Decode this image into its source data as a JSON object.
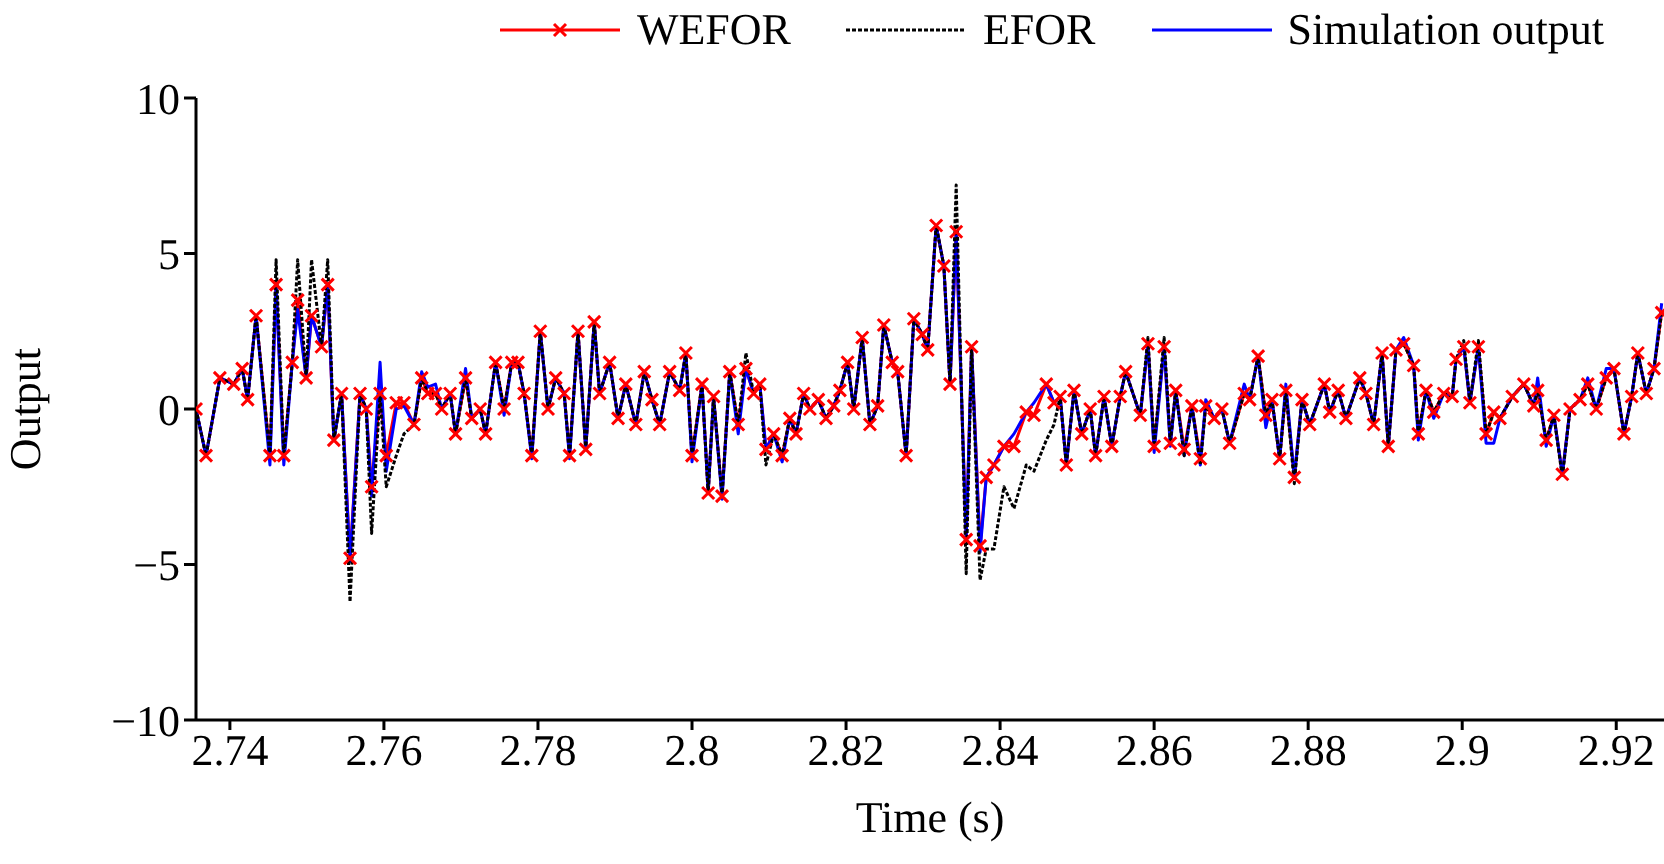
{
  "chart_data": {
    "type": "line",
    "xlabel": "Time (s)",
    "ylabel": "Output",
    "xlim": [
      2.7356,
      2.9262
    ],
    "ylim": [
      -10,
      10
    ],
    "xticks": [
      2.74,
      2.76,
      2.78,
      2.8,
      2.82,
      2.84,
      2.86,
      2.88,
      2.9,
      2.92
    ],
    "yticks": [
      {
        "value": -10,
        "label": "−10"
      },
      {
        "value": -5,
        "label": "−5"
      },
      0,
      5,
      10
    ],
    "grid": false,
    "legend": "top",
    "x": [
      2.7356,
      2.7369,
      2.7387,
      2.7405,
      2.7416,
      2.7423,
      2.7434,
      2.7452,
      2.746,
      2.747,
      2.7481,
      2.7488,
      2.7499,
      2.7506,
      2.7519,
      2.7527,
      2.7535,
      2.7545,
      2.7556,
      2.7569,
      2.7577,
      2.7584,
      2.7595,
      2.7603,
      2.7616,
      2.7626,
      2.7639,
      2.7649,
      2.7657,
      2.7667,
      2.7675,
      2.7686,
      2.7693,
      2.7706,
      2.7714,
      2.7725,
      2.7732,
      2.7745,
      2.7756,
      2.7766,
      2.7774,
      2.7782,
      2.7792,
      2.7803,
      2.7813,
      2.7823,
      2.7834,
      2.7841,
      2.7852,
      2.7862,
      2.7873,
      2.788,
      2.7893,
      2.7904,
      2.7914,
      2.7927,
      2.7938,
      2.7948,
      2.7958,
      2.7971,
      2.7984,
      2.7992,
      2.8,
      2.8013,
      2.8021,
      2.8028,
      2.8039,
      2.8049,
      2.806,
      2.807,
      2.808,
      2.8088,
      2.8096,
      2.8106,
      2.8117,
      2.8127,
      2.8135,
      2.8145,
      2.8153,
      2.8164,
      2.8174,
      2.8184,
      2.8192,
      2.8202,
      2.821,
      2.8221,
      2.8231,
      2.8241,
      2.8249,
      2.826,
      2.8267,
      2.8278,
      2.8288,
      2.8299,
      2.8306,
      2.8317,
      2.8327,
      2.8335,
      2.8343,
      2.8356,
      2.8363,
      2.8374,
      2.8382,
      2.8392,
      2.8405,
      2.8418,
      2.8434,
      2.8444,
      2.846,
      2.847,
      2.8478,
      2.8486,
      2.8496,
      2.8506,
      2.8517,
      2.8524,
      2.8535,
      2.8545,
      2.8556,
      2.8563,
      2.8582,
      2.8592,
      2.86,
      2.8613,
      2.8621,
      2.8628,
      2.8639,
      2.8649,
      2.866,
      2.8667,
      2.8678,
      2.8688,
      2.8698,
      2.8717,
      2.8724,
      2.8735,
      2.8745,
      2.8753,
      2.8763,
      2.8771,
      2.8782,
      2.8792,
      2.8802,
      2.8821,
      2.8828,
      2.8839,
      2.8849,
      2.8867,
      2.8875,
      2.8885,
      2.8896,
      2.8904,
      2.8914,
      2.8924,
      2.8937,
      2.8943,
      2.8953,
      2.8963,
      2.8976,
      2.8987,
      2.8992,
      2.9002,
      2.901,
      2.9021,
      2.9031,
      2.9041,
      2.9049,
      2.9065,
      2.908,
      2.9093,
      2.9098,
      2.9109,
      2.9119,
      2.913,
      2.914,
      2.9153,
      2.9163,
      2.9174,
      2.9187,
      2.9197,
      2.921,
      2.922,
      2.9228,
      2.9239,
      2.9249,
      2.9259
    ],
    "series": [
      {
        "name": "WEFOR",
        "color": "#ff0000",
        "marker": "cross",
        "line_style": "solid",
        "values": [
          0,
          -1.5,
          1,
          0.8,
          1.3,
          0.3,
          3,
          -1.5,
          4,
          -1.5,
          1.5,
          3.5,
          1,
          3,
          2,
          4,
          -1,
          0.5,
          -4.8,
          0.5,
          0,
          -2.5,
          0.5,
          -1.5,
          0.2,
          0.2,
          -0.5,
          1,
          0.5,
          0.5,
          0,
          0.5,
          -0.8,
          1,
          -0.3,
          0,
          -0.8,
          1.5,
          0,
          1.5,
          1.5,
          0.5,
          -1.5,
          2.5,
          0,
          1,
          0.5,
          -1.5,
          2.5,
          -1.3,
          2.8,
          0.5,
          1.5,
          -0.3,
          0.8,
          -0.5,
          1.2,
          0.3,
          -0.5,
          1.2,
          0.6,
          1.8,
          -1.5,
          0.8,
          -2.7,
          0.4,
          -2.8,
          1.2,
          -0.5,
          1.3,
          0.5,
          0.8,
          -1.3,
          -0.8,
          -1.5,
          -0.3,
          -0.8,
          0.5,
          0,
          0.3,
          -0.3,
          0.1,
          0.6,
          1.5,
          0,
          2.3,
          -0.5,
          0.1,
          2.7,
          1.5,
          1.2,
          -1.5,
          2.9,
          2.4,
          1.9,
          5.9,
          4.6,
          0.8,
          5.7,
          -4.2,
          2,
          -4.4,
          -2.2,
          -1.8,
          -1.2,
          -1.2,
          -0.1,
          -0.2,
          0.8,
          0.2,
          0.4,
          -1.8,
          0.6,
          -0.8,
          0,
          -1.5,
          0.4,
          -1.2,
          0.4,
          1.2,
          -0.2,
          2.1,
          -1.2,
          2,
          -1.1,
          0.6,
          -1.3,
          0.1,
          -1.6,
          0.1,
          -0.3,
          0,
          -1.1,
          0.5,
          0.3,
          1.7,
          -0.2,
          0.3,
          -1.6,
          0.6,
          -2.2,
          0.3,
          -0.5,
          0.8,
          -0.1,
          0.6,
          -0.3,
          1,
          0.5,
          -0.5,
          1.8,
          -1.2,
          1.9,
          2.1,
          1.4,
          -0.8,
          0.6,
          -0.1,
          0.5,
          0.4,
          1.6,
          2,
          0.2,
          2,
          -0.8,
          -0.1,
          -0.3,
          0.4,
          0.8,
          0.1,
          0.6,
          -1,
          -0.2,
          -2.1,
          0,
          0.3,
          0.8,
          0,
          1,
          1.3,
          -0.8,
          0.4,
          1.8,
          0.5,
          1.3,
          3.1
        ]
      },
      {
        "name": "EFOR",
        "color": "#000000",
        "marker": "none",
        "line_style": "dashed",
        "values": [
          0,
          -1.5,
          1,
          0.8,
          1.3,
          0.3,
          3,
          -1.5,
          4.8,
          -1.5,
          1.5,
          4.8,
          1,
          4.8,
          2,
          4.8,
          -1,
          0.5,
          -6.2,
          0.5,
          0,
          -4,
          0.5,
          -2.5,
          -1.5,
          -0.8,
          -0.5,
          1,
          0.5,
          0.5,
          0,
          0.5,
          -0.8,
          1,
          -0.3,
          0,
          -0.8,
          1.5,
          0,
          1.5,
          1.5,
          0.5,
          -1.5,
          2.5,
          0,
          1,
          0.5,
          -1.5,
          2.5,
          -1.3,
          2.8,
          0.5,
          1.5,
          -0.3,
          0.8,
          -0.5,
          1.2,
          0.3,
          -0.5,
          1.2,
          0.6,
          1.8,
          -1.5,
          0.8,
          -2.7,
          0.4,
          -2.8,
          1.2,
          -0.5,
          1.8,
          0.5,
          0.8,
          -1.8,
          -0.8,
          -1.5,
          -0.3,
          -0.8,
          0.5,
          0,
          0.3,
          -0.3,
          0.1,
          0.6,
          1.5,
          0,
          2.3,
          -0.5,
          0.1,
          2.7,
          1.5,
          1.2,
          -1.5,
          2.9,
          2.4,
          1.9,
          5.9,
          4.6,
          0.8,
          7.2,
          -5.3,
          2,
          -5.5,
          -4.5,
          -4.5,
          -2.5,
          -3.2,
          -1.8,
          -2,
          -1,
          -0.5,
          0.4,
          -1.8,
          0.6,
          -0.8,
          0,
          -1.5,
          0.4,
          -1.2,
          0.4,
          1.2,
          -0.2,
          2.3,
          -1.2,
          2.3,
          -1.1,
          0.6,
          -1.5,
          0.1,
          -1.8,
          0.1,
          -0.3,
          0,
          -1.1,
          0.5,
          0.3,
          1.7,
          -0.2,
          0.3,
          -1.6,
          0.6,
          -2.4,
          0.3,
          -0.5,
          0.8,
          -0.1,
          0.6,
          -0.3,
          1,
          0.5,
          -0.5,
          1.8,
          -1.2,
          1.9,
          2.1,
          1.4,
          -0.8,
          0.6,
          -0.1,
          0.5,
          0.4,
          1.6,
          2.2,
          0.2,
          2.2,
          -0.8,
          -0.1,
          -0.3,
          0.4,
          0.8,
          0.1,
          0.6,
          -1,
          -0.2,
          -2.2,
          0,
          0.3,
          0.8,
          0,
          1,
          1.3,
          -0.8,
          0.4,
          1.8,
          0.5,
          1.3,
          3.1
        ]
      },
      {
        "name": "Simulation output",
        "color": "#0000ff",
        "marker": "none",
        "line_style": "solid",
        "values": [
          0,
          -1.5,
          1,
          0.8,
          1.3,
          0.3,
          3,
          -1.8,
          4,
          -1.8,
          1.5,
          3.2,
          1,
          3,
          2,
          4,
          -1,
          0.5,
          -4.9,
          0.5,
          0,
          -2.8,
          1.5,
          -2,
          0,
          0.1,
          -0.5,
          1.2,
          0.7,
          0.8,
          0,
          0.5,
          -0.8,
          1.3,
          -0.3,
          0,
          -0.8,
          1.5,
          -0.2,
          1.5,
          1.5,
          0.5,
          -1.6,
          2.5,
          0,
          1,
          0.5,
          -1.6,
          2.5,
          -1.3,
          2.8,
          0.5,
          1.5,
          -0.3,
          0.8,
          -0.5,
          1.2,
          0.3,
          -0.5,
          1.2,
          0.6,
          1.8,
          -1.7,
          0.8,
          -2.7,
          0.4,
          -2.9,
          1.2,
          -0.8,
          1.3,
          0.5,
          0.8,
          -1.3,
          -0.8,
          -1.7,
          -0.3,
          -0.8,
          0.5,
          0,
          0.3,
          -0.3,
          0.1,
          0.6,
          1.5,
          0,
          2.3,
          -0.5,
          0.1,
          2.7,
          1.5,
          1.2,
          -1.5,
          2.9,
          2.4,
          1.9,
          5.9,
          4.6,
          0.8,
          5.7,
          -4.2,
          2,
          -4.6,
          -2.2,
          -1.8,
          -1.2,
          -0.8,
          -0.1,
          0.2,
          0.8,
          0.2,
          0.4,
          -1.8,
          0.6,
          -0.8,
          0,
          -1.5,
          0.4,
          -1.2,
          0.4,
          1.2,
          -0.2,
          2.1,
          -1.4,
          2,
          -1.2,
          0.6,
          -1.5,
          0.1,
          -1.8,
          0.3,
          -0.3,
          0,
          -1.1,
          0.8,
          0.3,
          1.7,
          -0.6,
          0.3,
          -1.6,
          0.8,
          -2.2,
          0.3,
          -0.5,
          0.8,
          -0.1,
          0.6,
          -0.3,
          1,
          0.5,
          -0.5,
          1.8,
          -1.2,
          1.9,
          2.3,
          1.4,
          -1,
          0.6,
          -0.3,
          0.5,
          0.4,
          1.6,
          2,
          0.2,
          2,
          -1.1,
          -1.1,
          -0.3,
          0.4,
          0.8,
          0.1,
          1,
          -1.2,
          -0.2,
          -2.1,
          0,
          0.3,
          1,
          0,
          1.3,
          1.3,
          -0.8,
          0.4,
          1.8,
          0.5,
          1.3,
          3.4
        ]
      }
    ]
  }
}
